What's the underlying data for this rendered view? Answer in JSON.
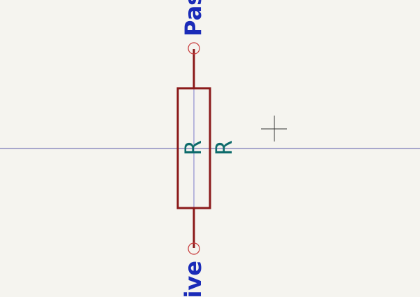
{
  "schematic": {
    "component": {
      "reference": "R",
      "value": "R",
      "pin_top_label": "Pas",
      "pin_bottom_label": "sive"
    },
    "colors": {
      "background": "#f5f4ef",
      "body_outline": "#8b1a1a",
      "pin_wire": "#8b1a1a",
      "pin_marker": "#c83c3c",
      "pin_text": "#1a2bb8",
      "ref_text": "#0d6b6b",
      "axis_line": "#5a5aa8",
      "cursor": "#333333"
    }
  }
}
